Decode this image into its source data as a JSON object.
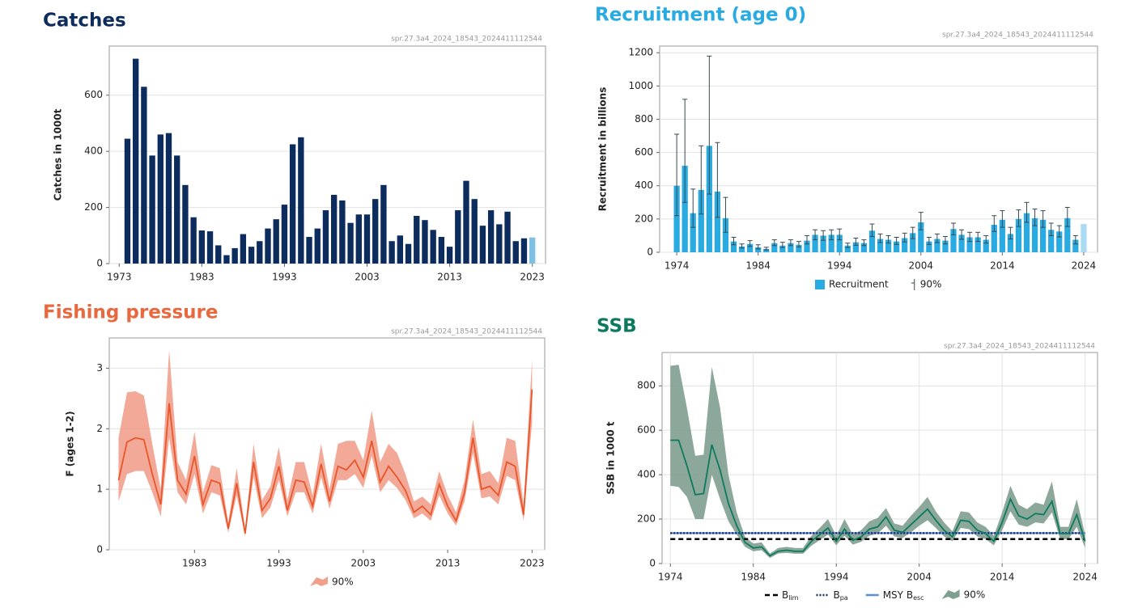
{
  "chart_data": [
    {
      "type": "bar",
      "title": "Catches",
      "source": "spr.27.3a4_2024_18543_2024411112544",
      "ylabel": "Catches in 1000t",
      "x": [
        1974,
        1975,
        1976,
        1977,
        1978,
        1979,
        1980,
        1981,
        1982,
        1983,
        1984,
        1985,
        1986,
        1987,
        1988,
        1989,
        1990,
        1991,
        1992,
        1993,
        1994,
        1995,
        1996,
        1997,
        1998,
        1999,
        2000,
        2001,
        2002,
        2003,
        2004,
        2005,
        2006,
        2007,
        2008,
        2009,
        2010,
        2011,
        2012,
        2013,
        2014,
        2015,
        2016,
        2017,
        2018,
        2019,
        2020,
        2021,
        2022,
        2023
      ],
      "values": [
        445,
        730,
        630,
        385,
        460,
        465,
        385,
        280,
        165,
        118,
        115,
        65,
        30,
        55,
        105,
        60,
        80,
        125,
        158,
        210,
        425,
        450,
        95,
        125,
        190,
        245,
        225,
        145,
        175,
        175,
        230,
        280,
        80,
        100,
        70,
        170,
        155,
        120,
        95,
        60,
        190,
        295,
        230,
        135,
        190,
        140,
        185,
        80,
        90,
        93
      ],
      "bar_colors": [
        "#0d2c5e",
        "#0d2c5e",
        "#0d2c5e",
        "#0d2c5e",
        "#0d2c5e",
        "#0d2c5e",
        "#0d2c5e",
        "#0d2c5e",
        "#0d2c5e",
        "#0d2c5e",
        "#0d2c5e",
        "#0d2c5e",
        "#0d2c5e",
        "#0d2c5e",
        "#0d2c5e",
        "#0d2c5e",
        "#0d2c5e",
        "#0d2c5e",
        "#0d2c5e",
        "#0d2c5e",
        "#0d2c5e",
        "#0d2c5e",
        "#0d2c5e",
        "#0d2c5e",
        "#0d2c5e",
        "#0d2c5e",
        "#0d2c5e",
        "#0d2c5e",
        "#0d2c5e",
        "#0d2c5e",
        "#0d2c5e",
        "#0d2c5e",
        "#0d2c5e",
        "#0d2c5e",
        "#0d2c5e",
        "#0d2c5e",
        "#0d2c5e",
        "#0d2c5e",
        "#0d2c5e",
        "#0d2c5e",
        "#0d2c5e",
        "#0d2c5e",
        "#0d2c5e",
        "#0d2c5e",
        "#0d2c5e",
        "#0d2c5e",
        "#0d2c5e",
        "#0d2c5e",
        "#0d2c5e",
        "#7fbfe0"
      ],
      "title_color": "#0d2c5e",
      "xlim": [
        1971.8,
        2024.6
      ],
      "xticks": [
        1973,
        1983,
        1993,
        2003,
        2013,
        2023
      ],
      "ylim": [
        0,
        775
      ],
      "yticks": [
        0,
        200,
        400,
        600
      ],
      "grid": true
    },
    {
      "type": "bar",
      "title": "Recruitment (age 0)",
      "source": "spr.27.3a4_2024_18543_2024411112544",
      "ylabel": "Recruitment in billions",
      "name": "Recruitment",
      "interval_name": "90%",
      "x": [
        1974,
        1975,
        1976,
        1977,
        1978,
        1979,
        1980,
        1981,
        1982,
        1983,
        1984,
        1985,
        1986,
        1987,
        1988,
        1989,
        1990,
        1991,
        1992,
        1993,
        1994,
        1995,
        1996,
        1997,
        1998,
        1999,
        2000,
        2001,
        2002,
        2003,
        2004,
        2005,
        2006,
        2007,
        2008,
        2009,
        2010,
        2011,
        2012,
        2013,
        2014,
        2015,
        2016,
        2017,
        2018,
        2019,
        2020,
        2021,
        2022,
        2023,
        2024
      ],
      "values": [
        400,
        520,
        235,
        375,
        640,
        365,
        205,
        65,
        35,
        50,
        30,
        20,
        55,
        40,
        55,
        45,
        70,
        105,
        100,
        105,
        105,
        40,
        60,
        55,
        130,
        80,
        75,
        65,
        85,
        115,
        180,
        65,
        80,
        70,
        140,
        105,
        90,
        90,
        75,
        165,
        195,
        110,
        200,
        235,
        205,
        195,
        135,
        125,
        205,
        75,
        170
      ],
      "low": [
        220,
        300,
        150,
        230,
        350,
        210,
        120,
        45,
        25,
        35,
        20,
        14,
        40,
        28,
        40,
        32,
        50,
        75,
        72,
        75,
        75,
        28,
        42,
        40,
        95,
        58,
        55,
        47,
        62,
        82,
        135,
        47,
        58,
        50,
        105,
        78,
        65,
        65,
        55,
        125,
        150,
        80,
        155,
        180,
        160,
        150,
        100,
        92,
        155,
        50,
        null
      ],
      "high": [
        710,
        920,
        380,
        640,
        1180,
        660,
        330,
        90,
        50,
        70,
        45,
        30,
        75,
        60,
        75,
        65,
        100,
        135,
        130,
        135,
        140,
        55,
        85,
        75,
        170,
        110,
        100,
        90,
        115,
        150,
        240,
        90,
        110,
        95,
        175,
        135,
        120,
        120,
        100,
        220,
        250,
        150,
        255,
        300,
        260,
        250,
        175,
        160,
        270,
        100,
        null
      ],
      "bar_colors": [
        "#29abe2",
        "#29abe2",
        "#29abe2",
        "#29abe2",
        "#29abe2",
        "#29abe2",
        "#29abe2",
        "#29abe2",
        "#29abe2",
        "#29abe2",
        "#29abe2",
        "#29abe2",
        "#29abe2",
        "#29abe2",
        "#29abe2",
        "#29abe2",
        "#29abe2",
        "#29abe2",
        "#29abe2",
        "#29abe2",
        "#29abe2",
        "#29abe2",
        "#29abe2",
        "#29abe2",
        "#29abe2",
        "#29abe2",
        "#29abe2",
        "#29abe2",
        "#29abe2",
        "#29abe2",
        "#29abe2",
        "#29abe2",
        "#29abe2",
        "#29abe2",
        "#29abe2",
        "#29abe2",
        "#29abe2",
        "#29abe2",
        "#29abe2",
        "#29abe2",
        "#29abe2",
        "#29abe2",
        "#29abe2",
        "#29abe2",
        "#29abe2",
        "#29abe2",
        "#29abe2",
        "#29abe2",
        "#29abe2",
        "#29abe2",
        "#a9dcf3"
      ],
      "color": "#29abe2",
      "interval_color": "#3b4a4f",
      "title_color": "#29abe2",
      "xlim": [
        1971.9,
        2025.7
      ],
      "xticks": [
        1974,
        1984,
        1994,
        2004,
        2014,
        2024
      ],
      "ylim": [
        0,
        1240
      ],
      "yticks": [
        0,
        200,
        400,
        600,
        800,
        1000,
        1200
      ],
      "grid": true
    },
    {
      "type": "line",
      "title": "Fishing pressure",
      "source": "spr.27.3a4_2024_18543_2024411112544",
      "ylabel": "F (ages 1-2)",
      "interval_name": "90%",
      "x": [
        1974,
        1975,
        1976,
        1977,
        1978,
        1979,
        1980,
        1981,
        1982,
        1983,
        1984,
        1985,
        1986,
        1987,
        1988,
        1989,
        1990,
        1991,
        1992,
        1993,
        1994,
        1995,
        1996,
        1997,
        1998,
        1999,
        2000,
        2001,
        2002,
        2003,
        2004,
        2005,
        2006,
        2007,
        2008,
        2009,
        2010,
        2011,
        2012,
        2013,
        2014,
        2015,
        2016,
        2017,
        2018,
        2019,
        2020,
        2021,
        2022,
        2023
      ],
      "values": [
        1.15,
        1.78,
        1.85,
        1.82,
        1.25,
        0.75,
        2.42,
        1.15,
        0.92,
        1.55,
        0.75,
        1.15,
        1.1,
        0.35,
        1.1,
        0.27,
        1.45,
        0.65,
        0.85,
        1.38,
        0.65,
        1.15,
        1.12,
        0.72,
        1.42,
        0.8,
        1.38,
        1.32,
        1.48,
        1.2,
        1.8,
        1.12,
        1.38,
        1.2,
        0.98,
        0.62,
        0.72,
        0.58,
        1.08,
        0.72,
        0.48,
        0.95,
        1.85,
        1.0,
        1.05,
        0.9,
        1.45,
        1.38,
        0.58,
        2.65
      ],
      "low": [
        0.8,
        1.25,
        1.3,
        1.3,
        0.95,
        0.55,
        1.85,
        0.95,
        0.75,
        1.25,
        0.6,
        0.95,
        0.9,
        0.28,
        0.9,
        0.22,
        1.2,
        0.52,
        0.7,
        1.15,
        0.55,
        0.95,
        0.95,
        0.6,
        1.2,
        0.68,
        1.15,
        1.15,
        1.25,
        1.02,
        1.55,
        0.95,
        1.15,
        1.02,
        0.82,
        0.52,
        0.6,
        0.48,
        0.9,
        0.6,
        0.4,
        0.8,
        1.6,
        0.85,
        0.88,
        0.75,
        1.22,
        1.15,
        0.48,
        2.1
      ],
      "high": [
        1.85,
        2.6,
        2.62,
        2.55,
        1.75,
        1.0,
        3.3,
        1.45,
        1.15,
        1.95,
        0.95,
        1.4,
        1.35,
        0.45,
        1.35,
        0.35,
        1.75,
        0.82,
        1.05,
        1.7,
        0.82,
        1.45,
        1.45,
        0.9,
        1.75,
        1.0,
        1.75,
        1.8,
        1.8,
        1.48,
        2.3,
        1.45,
        1.75,
        1.6,
        1.25,
        0.8,
        0.88,
        0.75,
        1.3,
        0.9,
        0.62,
        1.15,
        2.15,
        1.25,
        1.3,
        1.1,
        1.85,
        1.8,
        0.75,
        3.15
      ],
      "color": "#e8562a",
      "interval_color": "#f2a08c",
      "title_color": "#e8683f",
      "xlim": [
        1972.9,
        2024.5
      ],
      "xticks": [
        1983,
        1993,
        2003,
        2013,
        2023
      ],
      "ylim": [
        0,
        3.5
      ],
      "yticks": [
        0,
        1,
        2,
        3
      ],
      "grid": true
    },
    {
      "type": "line",
      "title": "SSB",
      "source": "spr.27.3a4_2024_18543_2024411112544",
      "ylabel": "SSB in 1000 t",
      "interval_name": "90%",
      "x": [
        1974,
        1975,
        1976,
        1977,
        1978,
        1979,
        1980,
        1981,
        1982,
        1983,
        1984,
        1985,
        1986,
        1987,
        1988,
        1989,
        1990,
        1991,
        1992,
        1993,
        1994,
        1995,
        1996,
        1997,
        1998,
        1999,
        2000,
        2001,
        2002,
        2003,
        2004,
        2005,
        2006,
        2007,
        2008,
        2009,
        2010,
        2011,
        2012,
        2013,
        2014,
        2015,
        2016,
        2017,
        2018,
        2019,
        2020,
        2021,
        2022,
        2023,
        2024
      ],
      "values": [
        555,
        555,
        440,
        310,
        315,
        535,
        420,
        270,
        170,
        95,
        70,
        75,
        35,
        55,
        60,
        55,
        55,
        100,
        130,
        160,
        100,
        155,
        105,
        120,
        155,
        165,
        210,
        150,
        140,
        175,
        210,
        245,
        195,
        150,
        120,
        195,
        190,
        150,
        135,
        100,
        185,
        290,
        215,
        200,
        225,
        220,
        280,
        135,
        135,
        220,
        100
      ],
      "low": [
        350,
        345,
        300,
        200,
        200,
        400,
        290,
        190,
        130,
        75,
        55,
        60,
        25,
        45,
        48,
        44,
        44,
        80,
        105,
        130,
        82,
        125,
        85,
        98,
        125,
        135,
        170,
        122,
        115,
        140,
        170,
        195,
        160,
        122,
        100,
        160,
        155,
        122,
        110,
        82,
        150,
        235,
        175,
        165,
        185,
        180,
        230,
        110,
        110,
        165,
        70
      ],
      "high": [
        890,
        895,
        700,
        485,
        490,
        885,
        700,
        400,
        230,
        120,
        90,
        95,
        45,
        70,
        75,
        70,
        70,
        125,
        160,
        200,
        125,
        200,
        130,
        150,
        190,
        205,
        250,
        180,
        170,
        215,
        255,
        300,
        235,
        185,
        145,
        235,
        230,
        185,
        165,
        125,
        230,
        350,
        265,
        245,
        275,
        265,
        370,
        165,
        165,
        290,
        130
      ],
      "color": "#0d7a5f",
      "interval_color": "#7f9f90",
      "title_color": "#0d7a5f",
      "reference_lines": [
        {
          "label": "MSY B",
          "subscript": "esc",
          "value": 137,
          "color": "#5b8ed6",
          "style": "solid"
        },
        {
          "label": "B",
          "subscript": "pa",
          "value": 137,
          "color": "#1a2a6c",
          "style": "dotted"
        },
        {
          "label": "B",
          "subscript": "lim",
          "value": 110,
          "color": "#000000",
          "style": "dashed"
        }
      ],
      "xlim": [
        1973,
        2025.5
      ],
      "xticks": [
        1974,
        1984,
        1994,
        2004,
        2014,
        2024
      ],
      "ylim": [
        0,
        950
      ],
      "yticks": [
        0,
        200,
        400,
        600,
        800
      ],
      "grid": true,
      "xgrid": true
    }
  ]
}
